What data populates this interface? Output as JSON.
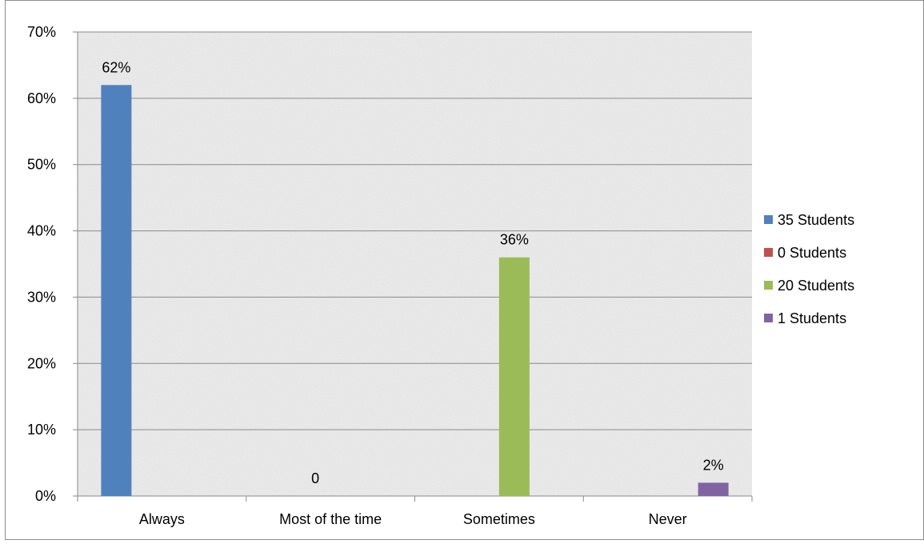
{
  "chart_data": {
    "type": "bar",
    "categories": [
      "Always",
      "Most of the time",
      "Sometimes",
      "Never"
    ],
    "series": [
      {
        "name": "35 Students",
        "color": "#4f81bd",
        "category": "Always",
        "value": 62,
        "label": "62%"
      },
      {
        "name": "0 Students",
        "color": "#c0504d",
        "category": "Most of the time",
        "value": 0,
        "label": "0"
      },
      {
        "name": "20 Students",
        "color": "#9bbb59",
        "category": "Sometimes",
        "value": 36,
        "label": "36%"
      },
      {
        "name": "1 Students",
        "color": "#8064a2",
        "category": "Never",
        "value": 2,
        "label": "2%"
      }
    ],
    "yticks": [
      "0%",
      "10%",
      "20%",
      "30%",
      "40%",
      "50%",
      "60%",
      "70%"
    ],
    "ylim": [
      0,
      70
    ],
    "grid": true,
    "legend_position": "right",
    "title": "",
    "xlabel": "",
    "ylabel": ""
  }
}
